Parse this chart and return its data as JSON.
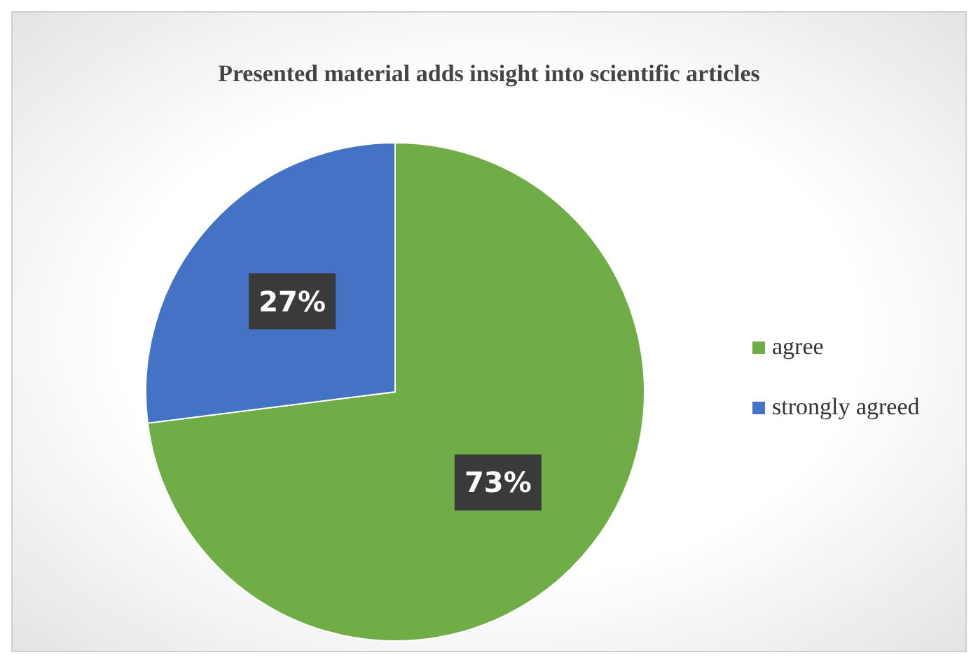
{
  "chart_data": {
    "type": "pie",
    "title": "Presented material adds insight into scientific articles",
    "categories": [
      "agree",
      "strongly agreed"
    ],
    "values": [
      73,
      27
    ],
    "colors": [
      "#70ad47",
      "#4472c4"
    ],
    "value_labels": [
      "73%",
      "27%"
    ],
    "legend": "right"
  }
}
